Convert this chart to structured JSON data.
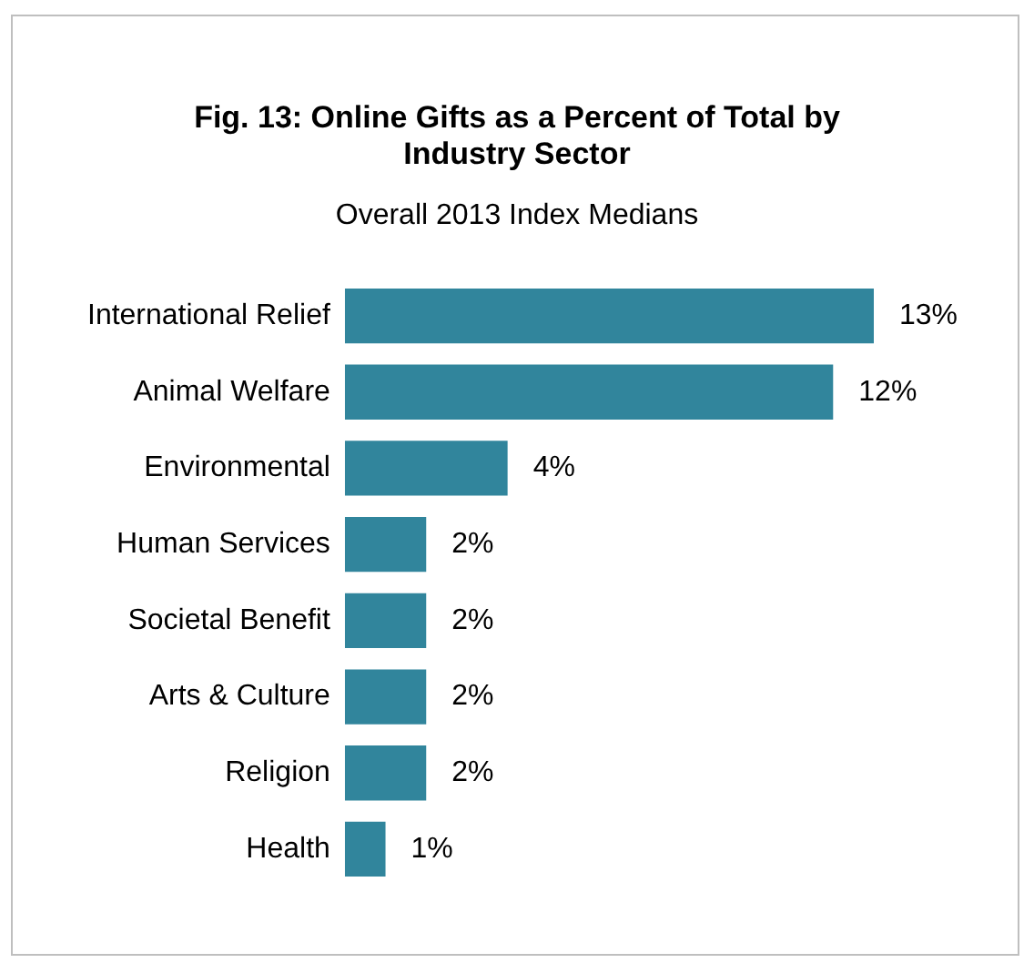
{
  "chart_data": {
    "type": "bar",
    "orientation": "horizontal",
    "title": "Fig. 13: Online Gifts as a Percent of Total by Industry Sector",
    "subtitle": "Overall 2013 Index Medians",
    "categories": [
      "International Relief",
      "Animal Welfare",
      "Environmental",
      "Human Services",
      "Societal Benefit",
      "Arts & Culture",
      "Religion",
      "Health"
    ],
    "values": [
      13,
      12,
      4,
      2,
      2,
      2,
      2,
      1
    ],
    "value_labels": [
      "13%",
      "12%",
      "4%",
      "2%",
      "2%",
      "2%",
      "2%",
      "1%"
    ],
    "xlim": [
      0,
      13
    ],
    "tick_labels": false,
    "color": "#31859c",
    "legend": false
  }
}
